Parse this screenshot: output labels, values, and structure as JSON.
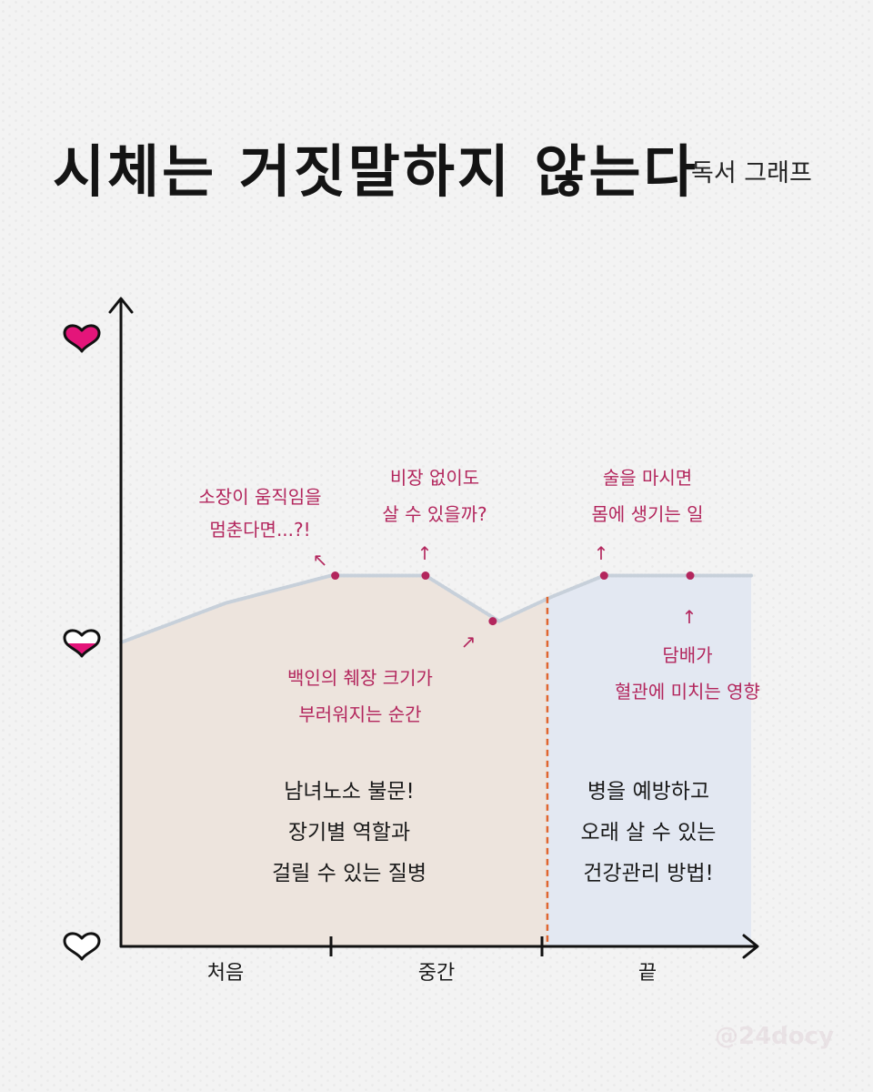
{
  "title": "시체는 거짓말하지 않는다",
  "subtitle": "독서 그래프",
  "watermark": "@24docy",
  "colors": {
    "area_left": "#ede4dd",
    "area_right": "#e3e8f2",
    "annotation": "#b3265d",
    "divider": "#e0662f",
    "heart": "#e4157a",
    "axis": "#111111"
  },
  "chart_data": {
    "type": "area",
    "x_categories": [
      "처음",
      "중간",
      "끝"
    ],
    "y_levels": [
      "empty-heart-icon",
      "half-heart-icon",
      "full-heart-icon"
    ],
    "y_range": [
      0,
      1
    ],
    "x_range": [
      0,
      3
    ],
    "points": [
      {
        "x": 0.0,
        "y": 0.5
      },
      {
        "x": 0.5,
        "y": 0.565
      },
      {
        "x": 1.0,
        "y": 0.61
      },
      {
        "x": 1.45,
        "y": 0.61
      },
      {
        "x": 1.8,
        "y": 0.535
      },
      {
        "x": 2.05,
        "y": 0.575
      },
      {
        "x": 2.3,
        "y": 0.61
      },
      {
        "x": 3.0,
        "y": 0.61
      }
    ],
    "divider_x": 2.03,
    "markers": [
      {
        "x": 1.02,
        "y": 0.61
      },
      {
        "x": 1.45,
        "y": 0.61
      },
      {
        "x": 1.77,
        "y": 0.535
      },
      {
        "x": 2.3,
        "y": 0.61
      },
      {
        "x": 2.71,
        "y": 0.61
      }
    ],
    "annotations": [
      {
        "lines": [
          "소장이 움직임을",
          "멈춘다면...?!"
        ],
        "arrow": "↖"
      },
      {
        "lines": [
          "비장 없이도",
          "살 수 있을까?"
        ],
        "arrow": "↑"
      },
      {
        "lines": [
          "백인의 췌장 크기가",
          "부러워지는 순간"
        ],
        "arrow": "↗"
      },
      {
        "lines": [
          "술을 마시면",
          "몸에 생기는 일"
        ],
        "arrow": "↑"
      },
      {
        "lines": [
          "담배가",
          "혈관에 미치는 영향"
        ],
        "arrow": "↑"
      }
    ],
    "section_texts": [
      {
        "lines": [
          "남녀노소 불문!",
          "장기별 역할과",
          "걸릴 수 있는 질병"
        ]
      },
      {
        "lines": [
          "병을 예방하고",
          "오래 살 수 있는",
          "건강관리 방법!"
        ]
      }
    ]
  }
}
